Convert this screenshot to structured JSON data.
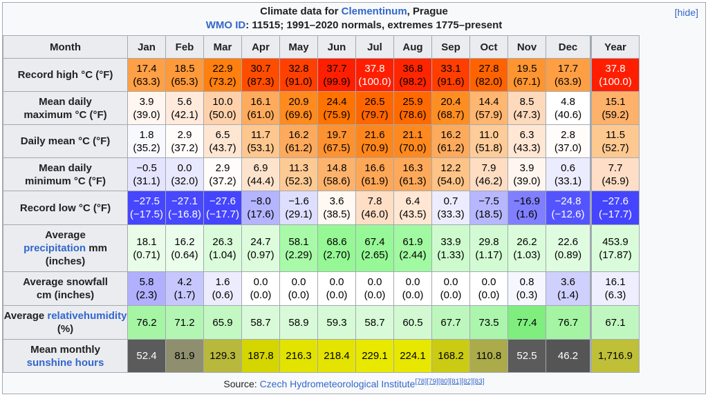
{
  "title": {
    "prefix": "Climate data for ",
    "place_link": "Clementinum",
    "place_suffix": ", Prague",
    "wmo_link": "WMO ID",
    "wmo_rest": ": 11515; 1991–2020 normals, extremes 1775–present",
    "hide_label": "[hide]"
  },
  "columns": [
    "Month",
    "Jan",
    "Feb",
    "Mar",
    "Apr",
    "May",
    "Jun",
    "Jul",
    "Aug",
    "Sep",
    "Oct",
    "Nov",
    "Dec",
    "Year"
  ],
  "rows": [
    {
      "head": [
        {
          "t": "Record high °C (°F)"
        }
      ],
      "cells": [
        {
          "a": "17.4",
          "b": "(63.3)",
          "bg": "#fea045",
          "fg": "#000000"
        },
        {
          "a": "18.5",
          "b": "(65.3)",
          "bg": "#fe9a3a",
          "fg": "#000000"
        },
        {
          "a": "22.9",
          "b": "(73.2)",
          "bg": "#ff7f0f",
          "fg": "#000000"
        },
        {
          "a": "30.7",
          "b": "(87.3)",
          "bg": "#ff4d00",
          "fg": "#000000"
        },
        {
          "a": "32.8",
          "b": "(91.0)",
          "bg": "#ff4000",
          "fg": "#000000"
        },
        {
          "a": "37.7",
          "b": "(99.9)",
          "bg": "#ff1f00",
          "fg": "#000000"
        },
        {
          "a": "37.8",
          "b": "(100.0)",
          "bg": "#ff1e00",
          "fg": "#ffffff"
        },
        {
          "a": "36.8",
          "b": "(98.2)",
          "bg": "#ff2500",
          "fg": "#000000"
        },
        {
          "a": "33.1",
          "b": "(91.6)",
          "bg": "#ff3e00",
          "fg": "#000000"
        },
        {
          "a": "27.8",
          "b": "(82.0)",
          "bg": "#ff6300",
          "fg": "#000000"
        },
        {
          "a": "19.5",
          "b": "(67.1)",
          "bg": "#fe9531",
          "fg": "#000000"
        },
        {
          "a": "17.7",
          "b": "(63.9)",
          "bg": "#fe9f44",
          "fg": "#000000"
        },
        {
          "a": "37.8",
          "b": "(100.0)",
          "bg": "#ff1e00",
          "fg": "#ffffff"
        }
      ]
    },
    {
      "head": [
        {
          "t": "Mean daily"
        },
        {
          "t": "maximum °C (°F)"
        }
      ],
      "cells": [
        {
          "a": "3.9",
          "b": "(39.0)",
          "bg": "#fff6ef",
          "fg": "#000000"
        },
        {
          "a": "5.6",
          "b": "(42.1)",
          "bg": "#ffeadc",
          "fg": "#000000"
        },
        {
          "a": "10.0",
          "b": "(50.0)",
          "bg": "#fed1ab",
          "fg": "#000000"
        },
        {
          "a": "16.1",
          "b": "(61.0)",
          "bg": "#feab5d",
          "fg": "#000000"
        },
        {
          "a": "20.9",
          "b": "(69.6)",
          "bg": "#ff8a1d",
          "fg": "#000000"
        },
        {
          "a": "24.4",
          "b": "(75.9)",
          "bg": "#ff7300",
          "fg": "#000000"
        },
        {
          "a": "26.5",
          "b": "(79.7)",
          "bg": "#ff6600",
          "fg": "#000000"
        },
        {
          "a": "25.9",
          "b": "(78.6)",
          "bg": "#ff6a00",
          "fg": "#000000"
        },
        {
          "a": "20.4",
          "b": "(68.7)",
          "bg": "#fe8e22",
          "fg": "#000000"
        },
        {
          "a": "14.4",
          "b": "(57.9)",
          "bg": "#feb671",
          "fg": "#000000"
        },
        {
          "a": "8.5",
          "b": "(47.3)",
          "bg": "#fedabd",
          "fg": "#000000"
        },
        {
          "a": "4.8",
          "b": "(40.6)",
          "bg": "#ffffff",
          "fg": "#000000"
        },
        {
          "a": "15.1",
          "b": "(59.2)",
          "bg": "#feb16a",
          "fg": "#000000"
        }
      ]
    },
    {
      "head": [
        {
          "t": "Daily mean °C (°F)"
        }
      ],
      "cells": [
        {
          "a": "1.8",
          "b": "(35.2)",
          "bg": "#f8f8ff",
          "fg": "#000000"
        },
        {
          "a": "2.9",
          "b": "(37.2)",
          "bg": "#fffcfa",
          "fg": "#000000"
        },
        {
          "a": "6.5",
          "b": "(43.7)",
          "bg": "#fee6d2",
          "fg": "#000000"
        },
        {
          "a": "11.7",
          "b": "(53.1)",
          "bg": "#fec78e",
          "fg": "#000000"
        },
        {
          "a": "16.2",
          "b": "(61.2)",
          "bg": "#feaa5c",
          "fg": "#000000"
        },
        {
          "a": "19.7",
          "b": "(67.5)",
          "bg": "#fe9230",
          "fg": "#000000"
        },
        {
          "a": "21.6",
          "b": "(70.9)",
          "bg": "#ff861a",
          "fg": "#000000"
        },
        {
          "a": "21.1",
          "b": "(70.0)",
          "bg": "#ff891e",
          "fg": "#000000"
        },
        {
          "a": "16.2",
          "b": "(61.2)",
          "bg": "#feaa5c",
          "fg": "#000000"
        },
        {
          "a": "11.0",
          "b": "(51.8)",
          "bg": "#fecc98",
          "fg": "#000000"
        },
        {
          "a": "6.3",
          "b": "(43.3)",
          "bg": "#ffe7d4",
          "fg": "#000000"
        },
        {
          "a": "2.8",
          "b": "(37.0)",
          "bg": "#fffcfa",
          "fg": "#000000"
        },
        {
          "a": "11.5",
          "b": "(52.7)",
          "bg": "#fec891",
          "fg": "#000000"
        }
      ]
    },
    {
      "head": [
        {
          "t": "Mean daily"
        },
        {
          "t": "minimum °C (°F)"
        }
      ],
      "cells": [
        {
          "a": "−0.5",
          "b": "(31.1)",
          "bg": "#e4e4ff",
          "fg": "#000000"
        },
        {
          "a": "0.0",
          "b": "(32.0)",
          "bg": "#e8e8ff",
          "fg": "#000000"
        },
        {
          "a": "2.9",
          "b": "(37.2)",
          "bg": "#fffcfa",
          "fg": "#000000"
        },
        {
          "a": "6.9",
          "b": "(44.4)",
          "bg": "#fee3cc",
          "fg": "#000000"
        },
        {
          "a": "11.3",
          "b": "(52.3)",
          "bg": "#feca94",
          "fg": "#000000"
        },
        {
          "a": "14.8",
          "b": "(58.6)",
          "bg": "#feb36d",
          "fg": "#000000"
        },
        {
          "a": "16.6",
          "b": "(61.9)",
          "bg": "#fea756",
          "fg": "#000000"
        },
        {
          "a": "16.3",
          "b": "(61.3)",
          "bg": "#fea95a",
          "fg": "#000000"
        },
        {
          "a": "12.2",
          "b": "(54.0)",
          "bg": "#fec386",
          "fg": "#000000"
        },
        {
          "a": "7.9",
          "b": "(46.2)",
          "bg": "#feddc3",
          "fg": "#000000"
        },
        {
          "a": "3.9",
          "b": "(39.0)",
          "bg": "#fff6ef",
          "fg": "#000000"
        },
        {
          "a": "0.6",
          "b": "(33.1)",
          "bg": "#ececff",
          "fg": "#000000"
        },
        {
          "a": "7.7",
          "b": "(45.9)",
          "bg": "#fedec6",
          "fg": "#000000"
        }
      ]
    },
    {
      "head": [
        {
          "t": "Record low °C (°F)"
        }
      ],
      "cells": [
        {
          "a": "−27.5",
          "b": "(−17.5)",
          "bg": "#4646ff",
          "fg": "#ffffff"
        },
        {
          "a": "−27.1",
          "b": "(−16.8)",
          "bg": "#4848ff",
          "fg": "#ffffff"
        },
        {
          "a": "−27.6",
          "b": "(−17.7)",
          "bg": "#4545ff",
          "fg": "#ffffff"
        },
        {
          "a": "−8.0",
          "b": "(17.6)",
          "bg": "#b4b4ff",
          "fg": "#000000"
        },
        {
          "a": "−1.6",
          "b": "(29.1)",
          "bg": "#dedeff",
          "fg": "#000000"
        },
        {
          "a": "3.6",
          "b": "(38.5)",
          "bg": "#fff8f3",
          "fg": "#000000"
        },
        {
          "a": "7.8",
          "b": "(46.0)",
          "bg": "#fedec5",
          "fg": "#000000"
        },
        {
          "a": "6.4",
          "b": "(43.5)",
          "bg": "#ffe7d3",
          "fg": "#000000"
        },
        {
          "a": "0.7",
          "b": "(33.3)",
          "bg": "#ececff",
          "fg": "#000000"
        },
        {
          "a": "−7.5",
          "b": "(18.5)",
          "bg": "#b7b7ff",
          "fg": "#000000"
        },
        {
          "a": "−16.9",
          "b": "(1.6)",
          "bg": "#7f7fff",
          "fg": "#000000"
        },
        {
          "a": "−24.8",
          "b": "(−12.6)",
          "bg": "#5454ff",
          "fg": "#ffffff"
        },
        {
          "a": "−27.6",
          "b": "(−17.7)",
          "bg": "#4545ff",
          "fg": "#ffffff"
        }
      ]
    },
    {
      "head": [
        {
          "t": "Average"
        },
        {
          "t": "precipitation",
          "link": true,
          "suffix": " mm"
        },
        {
          "t": "(inches)"
        }
      ],
      "cells": [
        {
          "a": "18.1",
          "b": "(0.71)",
          "bg": "#e8fce8",
          "fg": "#000000"
        },
        {
          "a": "16.2",
          "b": "(0.64)",
          "bg": "#ebfdeb",
          "fg": "#000000"
        },
        {
          "a": "26.3",
          "b": "(1.04)",
          "bg": "#dafcda",
          "fg": "#000000"
        },
        {
          "a": "24.7",
          "b": "(0.97)",
          "bg": "#dcfcdc",
          "fg": "#000000"
        },
        {
          "a": "58.1",
          "b": "(2.29)",
          "bg": "#a8faa8",
          "fg": "#000000"
        },
        {
          "a": "68.6",
          "b": "(2.70)",
          "bg": "#95f895",
          "fg": "#000000"
        },
        {
          "a": "67.4",
          "b": "(2.65)",
          "bg": "#97f897",
          "fg": "#000000"
        },
        {
          "a": "61.9",
          "b": "(2.44)",
          "bg": "#a1f9a1",
          "fg": "#000000"
        },
        {
          "a": "33.9",
          "b": "(1.33)",
          "bg": "#cdfbcd",
          "fg": "#000000"
        },
        {
          "a": "29.8",
          "b": "(1.17)",
          "bg": "#d3fbd3",
          "fg": "#000000"
        },
        {
          "a": "26.2",
          "b": "(1.03)",
          "bg": "#dafcda",
          "fg": "#000000"
        },
        {
          "a": "22.6",
          "b": "(0.89)",
          "bg": "#e0fce0",
          "fg": "#000000"
        },
        {
          "a": "453.9",
          "b": "(17.87)",
          "bg": "#dafcda",
          "fg": "#000000"
        }
      ]
    },
    {
      "head": [
        {
          "t": "Average snowfall"
        },
        {
          "t": "cm (inches)"
        }
      ],
      "cells": [
        {
          "a": "5.8",
          "b": "(2.3)",
          "bg": "#b0b0fe",
          "fg": "#000000"
        },
        {
          "a": "4.2",
          "b": "(1.7)",
          "bg": "#c7c7fe",
          "fg": "#000000"
        },
        {
          "a": "1.6",
          "b": "(0.6)",
          "bg": "#ececff",
          "fg": "#000000"
        },
        {
          "a": "0.0",
          "b": "(0.0)",
          "bg": "#ffffff",
          "fg": "#000000"
        },
        {
          "a": "0.0",
          "b": "(0.0)",
          "bg": "#ffffff",
          "fg": "#000000"
        },
        {
          "a": "0.0",
          "b": "(0.0)",
          "bg": "#ffffff",
          "fg": "#000000"
        },
        {
          "a": "0.0",
          "b": "(0.0)",
          "bg": "#ffffff",
          "fg": "#000000"
        },
        {
          "a": "0.0",
          "b": "(0.0)",
          "bg": "#ffffff",
          "fg": "#000000"
        },
        {
          "a": "0.0",
          "b": "(0.0)",
          "bg": "#ffffff",
          "fg": "#000000"
        },
        {
          "a": "0.0",
          "b": "(0.0)",
          "bg": "#ffffff",
          "fg": "#000000"
        },
        {
          "a": "0.8",
          "b": "(0.3)",
          "bg": "#f6f6ff",
          "fg": "#000000"
        },
        {
          "a": "3.6",
          "b": "(1.4)",
          "bg": "#d0d0fe",
          "fg": "#000000"
        },
        {
          "a": "16.1",
          "b": "(6.3)",
          "bg": "#eeeeff",
          "fg": "#000000"
        }
      ]
    },
    {
      "head": [
        {
          "t": "Average "
        },
        {
          "t": "relative",
          "link": true,
          "inline": true
        },
        {
          "t": "humidity",
          "link": true,
          "suffix": " (%)"
        }
      ],
      "cells": [
        {
          "a": "76.2",
          "bg": "#a5f5a5",
          "fg": "#000000"
        },
        {
          "a": "71.2",
          "bg": "#b3f6b3",
          "fg": "#000000"
        },
        {
          "a": "65.9",
          "bg": "#c3f8c3",
          "fg": "#000000"
        },
        {
          "a": "58.7",
          "bg": "#d8fad8",
          "fg": "#000000"
        },
        {
          "a": "58.9",
          "bg": "#d8fad8",
          "fg": "#000000"
        },
        {
          "a": "59.3",
          "bg": "#d6fad6",
          "fg": "#000000"
        },
        {
          "a": "58.7",
          "bg": "#d8fad8",
          "fg": "#000000"
        },
        {
          "a": "60.5",
          "bg": "#d3f9d3",
          "fg": "#000000"
        },
        {
          "a": "67.7",
          "bg": "#bef7be",
          "fg": "#000000"
        },
        {
          "a": "73.5",
          "bg": "#acf5ac",
          "fg": "#000000"
        },
        {
          "a": "77.4",
          "bg": "#7fee7f",
          "fg": "#000000"
        },
        {
          "a": "76.7",
          "bg": "#a4f4a4",
          "fg": "#000000"
        },
        {
          "a": "67.1",
          "bg": "#c0f7c0",
          "fg": "#000000"
        }
      ]
    },
    {
      "head": [
        {
          "t": "Mean monthly"
        },
        {
          "t": "sunshine hours",
          "link": true
        }
      ],
      "cells": [
        {
          "a": "52.4",
          "bg": "#5b5b5b",
          "fg": "#ffffff"
        },
        {
          "a": "81.9",
          "bg": "#8f8f70",
          "fg": "#000000"
        },
        {
          "a": "129.3",
          "bg": "#b8b83c",
          "fg": "#000000"
        },
        {
          "a": "187.8",
          "bg": "#d5d500",
          "fg": "#000000"
        },
        {
          "a": "216.3",
          "bg": "#e3e300",
          "fg": "#000000"
        },
        {
          "a": "218.4",
          "bg": "#e4e400",
          "fg": "#000000"
        },
        {
          "a": "229.1",
          "bg": "#e9e900",
          "fg": "#000000"
        },
        {
          "a": "224.1",
          "bg": "#e7e700",
          "fg": "#000000"
        },
        {
          "a": "168.2",
          "bg": "#cbcb14",
          "fg": "#000000"
        },
        {
          "a": "110.8",
          "bg": "#abab4b",
          "fg": "#000000"
        },
        {
          "a": "52.5",
          "bg": "#5b5b5b",
          "fg": "#ffffff"
        },
        {
          "a": "46.2",
          "bg": "#555555",
          "fg": "#ffffff"
        },
        {
          "a": "1,716.9",
          "bg": "#c0c038",
          "fg": "#000000"
        }
      ]
    }
  ],
  "source": {
    "prefix": "Source: ",
    "link": "Czech Hydrometeorological Institute",
    "refs": [
      "[78]",
      "[79]",
      "[80]",
      "[81]",
      "[82]",
      "[83]"
    ]
  }
}
